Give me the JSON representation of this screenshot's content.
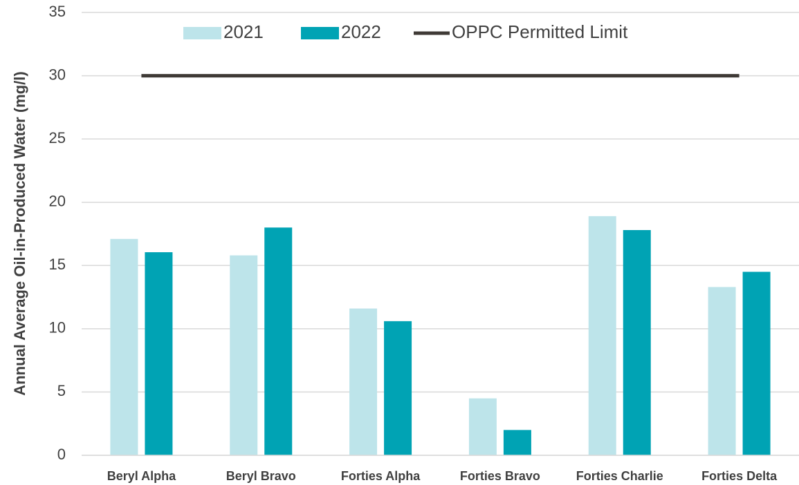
{
  "chart_data": {
    "type": "bar",
    "y_label": "Annual Average Oil-in-Produced Water (mg/l)",
    "categories": [
      "Beryl Alpha",
      "Beryl Bravo",
      "Forties Alpha",
      "Forties Bravo",
      "Forties Charlie",
      "Forties Delta"
    ],
    "series": [
      {
        "name": "2021",
        "type": "bar",
        "color": "#bde4ea",
        "values": [
          17.1,
          15.8,
          11.6,
          4.5,
          18.9,
          13.3
        ]
      },
      {
        "name": "2022",
        "type": "bar",
        "color": "#00a3b4",
        "values": [
          16.05,
          18.0,
          10.6,
          2.0,
          17.8,
          14.5
        ]
      },
      {
        "name": "OPPC Permitted Limit",
        "type": "line",
        "color": "#3f3a36",
        "values": [
          30,
          30,
          30,
          30,
          30,
          30
        ]
      }
    ],
    "ylim": [
      0,
      35
    ],
    "yticks": [
      0,
      5,
      10,
      15,
      20,
      25,
      30,
      35
    ],
    "grid": true,
    "legend": "top"
  }
}
